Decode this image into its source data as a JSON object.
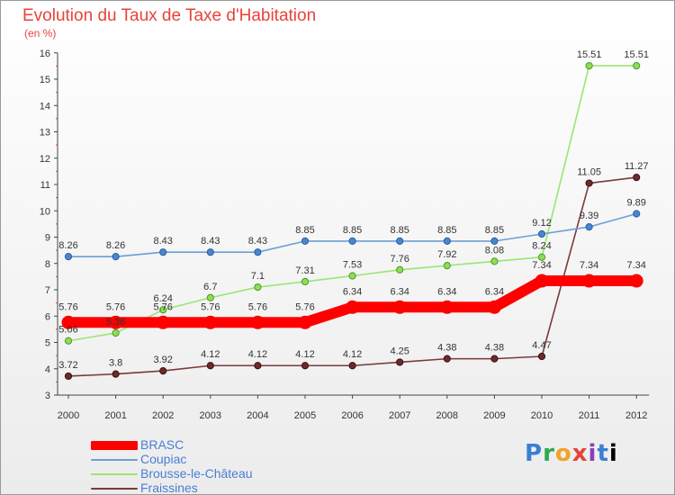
{
  "chart_data": {
    "type": "line",
    "title": "Evolution du Taux de Taxe d'Habitation",
    "subtitle": "(en %)",
    "x": [
      "2000",
      "2001",
      "2002",
      "2003",
      "2004",
      "2005",
      "2006",
      "2007",
      "2008",
      "2009",
      "2010",
      "2011",
      "2012"
    ],
    "ylim": [
      3,
      16
    ],
    "yticks": [
      3,
      4,
      5,
      6,
      7,
      8,
      9,
      10,
      11,
      12,
      13,
      14,
      15,
      16
    ],
    "grid": false,
    "legend_position": "bottom-left",
    "series": [
      {
        "name": "BRASC",
        "color": "#ff0000",
        "values": [
          5.76,
          5.76,
          5.76,
          5.76,
          5.76,
          5.76,
          6.34,
          6.34,
          6.34,
          6.34,
          7.34,
          7.34,
          7.34
        ],
        "labels": [
          "5.76",
          "5.76",
          "5.76",
          "5.76",
          "5.76",
          "5.76",
          "6.34",
          "6.34",
          "6.34",
          "6.34",
          "7.34",
          "7.34",
          "7.34"
        ]
      },
      {
        "name": "Coupiac",
        "color": "#6b9fd6",
        "values": [
          8.26,
          8.26,
          8.43,
          8.43,
          8.43,
          8.85,
          8.85,
          8.85,
          8.85,
          8.85,
          9.12,
          9.39,
          9.89
        ],
        "labels": [
          "8.26",
          "8.26",
          "8.43",
          "8.43",
          "8.43",
          "8.85",
          "8.85",
          "8.85",
          "8.85",
          "8.85",
          "9.12",
          "9.39",
          "9.89"
        ]
      },
      {
        "name": "Brousse-le-Château",
        "color": "#99e673",
        "values": [
          5.06,
          5.36,
          6.24,
          6.7,
          7.1,
          7.31,
          7.53,
          7.76,
          7.92,
          8.08,
          8.24,
          15.51,
          15.51
        ],
        "labels": [
          "5.06",
          "5.36",
          "6.24",
          "6.7",
          "7.1",
          "7.31",
          "7.53",
          "7.76",
          "7.92",
          "8.08",
          "8.24",
          "15.51",
          "15.51"
        ]
      },
      {
        "name": "Fraissines",
        "color": "#7a3a3a",
        "values": [
          3.72,
          3.8,
          3.92,
          4.12,
          4.12,
          4.12,
          4.12,
          4.25,
          4.38,
          4.38,
          4.47,
          11.05,
          11.27
        ],
        "labels": [
          "3.72",
          "3.8",
          "3.92",
          "4.12",
          "4.12",
          "4.12",
          "4.12",
          "4.25",
          "4.38",
          "4.38",
          "4.47",
          "11.05",
          "11.27"
        ]
      }
    ]
  },
  "logo": {
    "chars": [
      "P",
      "r",
      "o",
      "x",
      "i",
      "t",
      "i"
    ]
  }
}
